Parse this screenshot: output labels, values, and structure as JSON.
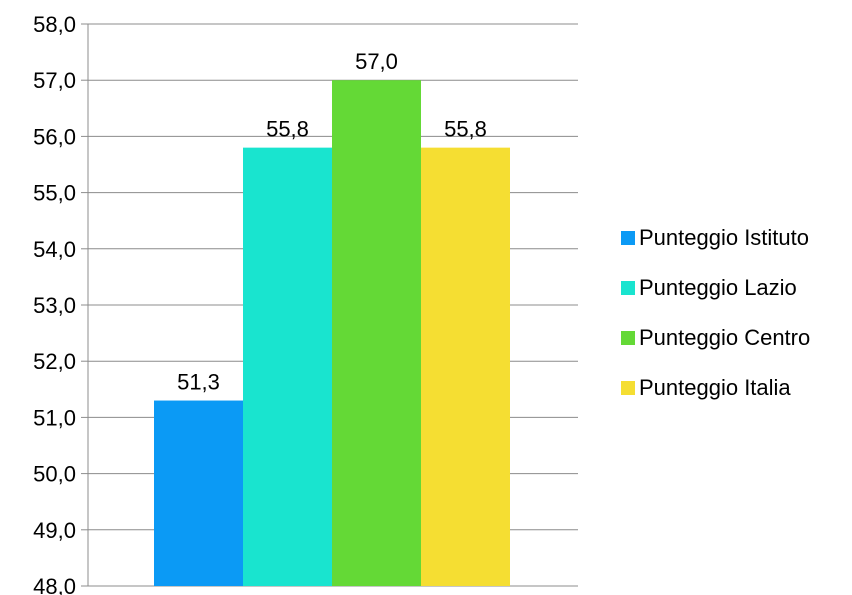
{
  "chart_data": {
    "type": "bar",
    "categories": [
      ""
    ],
    "series": [
      {
        "name": "Punteggio Istituto",
        "values": [
          51.3
        ],
        "value_label": "51,3",
        "color": "#0B9AF5"
      },
      {
        "name": "Punteggio Lazio",
        "values": [
          55.8
        ],
        "value_label": "55,8",
        "color": "#19E4CF"
      },
      {
        "name": "Punteggio Centro",
        "values": [
          57.0
        ],
        "value_label": "57,0",
        "color": "#64D936"
      },
      {
        "name": "Punteggio Italia",
        "values": [
          55.8
        ],
        "value_label": "55,8",
        "color": "#F5DE32"
      }
    ],
    "ylim": [
      48,
      58
    ],
    "yticks": [
      "48,0",
      "49,0",
      "50,0",
      "51,0",
      "52,0",
      "53,0",
      "54,0",
      "55,0",
      "56,0",
      "57,0",
      "58,0"
    ],
    "title": "",
    "xlabel": "",
    "ylabel": "",
    "grid": true,
    "legend_position": "right"
  }
}
